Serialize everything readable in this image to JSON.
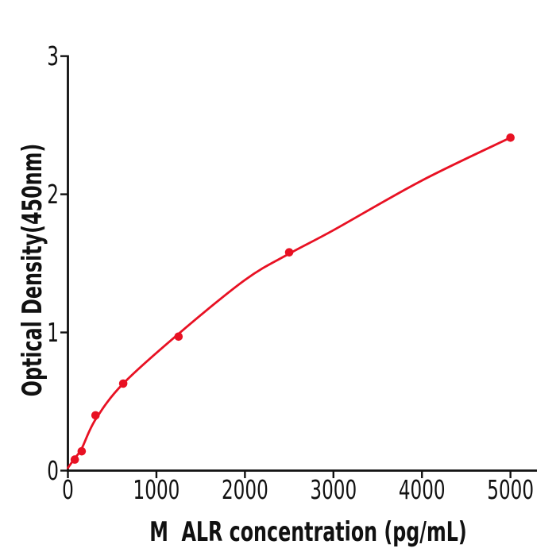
{
  "figure": {
    "background": "#ffffff"
  },
  "chart_data": {
    "type": "scatter",
    "title": "",
    "xlabel": "M  ALR concentration (pg/mL)",
    "ylabel": "Optical Density(450nm)",
    "x_ticks": [
      0,
      1000,
      2000,
      3000,
      4000,
      5000
    ],
    "y_ticks": [
      0,
      1,
      2,
      3
    ],
    "xlim": [
      0,
      5300
    ],
    "ylim": [
      0,
      3
    ],
    "grid": false,
    "legend": false,
    "axis_color": "#111111",
    "text_color": "#111111",
    "series": [
      {
        "name": "fitted-curve",
        "type": "line",
        "color": "#e81123",
        "points": [
          {
            "x": 0,
            "y": 0.02
          },
          {
            "x": 78,
            "y": 0.09
          },
          {
            "x": 156,
            "y": 0.16
          },
          {
            "x": 312,
            "y": 0.37
          },
          {
            "x": 625,
            "y": 0.63
          },
          {
            "x": 1250,
            "y": 0.99
          },
          {
            "x": 2000,
            "y": 1.38
          },
          {
            "x": 2500,
            "y": 1.57
          },
          {
            "x": 3000,
            "y": 1.74
          },
          {
            "x": 4000,
            "y": 2.1
          },
          {
            "x": 5000,
            "y": 2.41
          }
        ]
      },
      {
        "name": "standard-points",
        "type": "scatter",
        "marker": "circle",
        "color": "#e81123",
        "points": [
          {
            "x": 78,
            "y": 0.08
          },
          {
            "x": 156,
            "y": 0.14
          },
          {
            "x": 312,
            "y": 0.4
          },
          {
            "x": 625,
            "y": 0.63
          },
          {
            "x": 1250,
            "y": 0.97
          },
          {
            "x": 2500,
            "y": 1.58
          },
          {
            "x": 5000,
            "y": 2.41
          }
        ]
      }
    ]
  }
}
